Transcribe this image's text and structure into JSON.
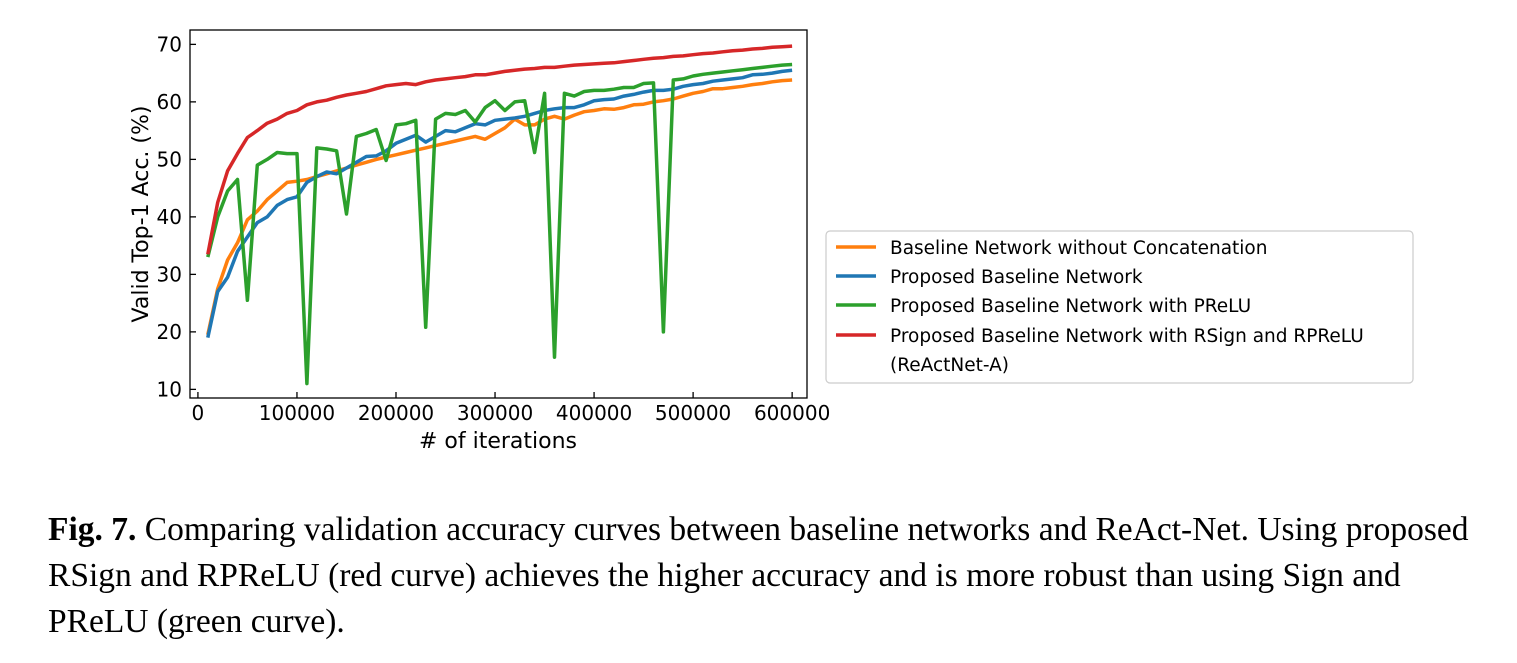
{
  "chart_data": {
    "type": "line",
    "xlabel": "# of iterations",
    "ylabel": "Valid Top-1 Acc. (%)",
    "xlim": [
      -8000,
      615000
    ],
    "ylim": [
      8.5,
      72.5
    ],
    "xticks": [
      0,
      100000,
      200000,
      300000,
      400000,
      500000,
      600000
    ],
    "yticks": [
      10,
      20,
      30,
      40,
      50,
      60,
      70
    ],
    "grid": false,
    "legend_position": "right, outside plot",
    "x": [
      10000,
      20000,
      30000,
      40000,
      50000,
      60000,
      70000,
      80000,
      90000,
      100000,
      110000,
      120000,
      130000,
      140000,
      150000,
      160000,
      170000,
      180000,
      190000,
      200000,
      210000,
      220000,
      230000,
      240000,
      250000,
      260000,
      270000,
      280000,
      290000,
      300000,
      310000,
      320000,
      330000,
      340000,
      350000,
      360000,
      370000,
      380000,
      390000,
      400000,
      410000,
      420000,
      430000,
      440000,
      450000,
      460000,
      470000,
      480000,
      490000,
      500000,
      510000,
      520000,
      530000,
      540000,
      550000,
      560000,
      570000,
      580000,
      590000,
      600000
    ],
    "series": [
      {
        "name": "Baseline Network without Concatenation",
        "color": "#ff7f0e",
        "values": [
          19.5,
          27.5,
          32.5,
          35.5,
          39.5,
          41.0,
          43.0,
          44.5,
          46.0,
          46.2,
          46.5,
          47.0,
          47.5,
          48.0,
          48.5,
          49.0,
          49.5,
          50.0,
          50.4,
          50.8,
          51.2,
          51.6,
          52.0,
          52.4,
          52.8,
          53.2,
          53.6,
          54.0,
          53.5,
          54.5,
          55.5,
          57.0,
          56.0,
          56.0,
          57.0,
          57.5,
          57.0,
          57.7,
          58.3,
          58.5,
          58.8,
          58.7,
          59.0,
          59.5,
          59.6,
          60.0,
          60.2,
          60.5,
          61.0,
          61.5,
          61.8,
          62.3,
          62.3,
          62.5,
          62.7,
          63.0,
          63.2,
          63.5,
          63.7,
          63.8
        ]
      },
      {
        "name": "Proposed Baseline Network",
        "color": "#1f77b4",
        "values": [
          19.0,
          27.0,
          29.5,
          34.0,
          36.5,
          39.0,
          40.0,
          42.0,
          43.0,
          43.5,
          46.0,
          47.0,
          47.8,
          47.5,
          48.5,
          49.5,
          50.5,
          50.6,
          51.5,
          52.8,
          53.5,
          54.2,
          53.0,
          54.0,
          55.0,
          54.8,
          55.5,
          56.2,
          56.0,
          56.8,
          57.0,
          57.2,
          57.5,
          58.0,
          58.5,
          58.8,
          59.0,
          59.0,
          59.5,
          60.2,
          60.4,
          60.5,
          61.0,
          61.3,
          61.7,
          62.0,
          62.0,
          62.2,
          62.7,
          63.0,
          63.2,
          63.6,
          63.8,
          64.0,
          64.2,
          64.7,
          64.8,
          65.0,
          65.3,
          65.5
        ]
      },
      {
        "name": "Proposed Baseline Network with PReLU",
        "color": "#2ca02c",
        "values": [
          33.0,
          40.0,
          44.5,
          46.5,
          25.5,
          49.0,
          50.0,
          51.2,
          51.0,
          51.0,
          11.0,
          52.0,
          51.8,
          51.5,
          40.5,
          54.0,
          54.5,
          55.2,
          49.8,
          56.0,
          56.2,
          56.8,
          20.8,
          57.0,
          58.0,
          57.8,
          58.5,
          56.5,
          59.0,
          60.2,
          58.5,
          60.0,
          60.2,
          51.2,
          61.5,
          15.6,
          61.5,
          61.0,
          61.8,
          62.0,
          62.0,
          62.2,
          62.5,
          62.5,
          63.2,
          63.3,
          20.0,
          63.8,
          64.0,
          64.5,
          64.8,
          65.0,
          65.2,
          65.4,
          65.6,
          65.8,
          66.0,
          66.2,
          66.4,
          66.5
        ]
      },
      {
        "name": "Proposed Baseline Network with RSign and RPReLU\n(ReActNet-A)",
        "color": "#d62728",
        "values": [
          33.5,
          42.5,
          48.0,
          51.0,
          53.8,
          55.0,
          56.3,
          57.0,
          58.0,
          58.5,
          59.5,
          60.0,
          60.3,
          60.8,
          61.2,
          61.5,
          61.8,
          62.3,
          62.8,
          63.0,
          63.2,
          63.0,
          63.5,
          63.8,
          64.0,
          64.2,
          64.4,
          64.7,
          64.7,
          65.0,
          65.3,
          65.5,
          65.7,
          65.8,
          66.0,
          66.0,
          66.2,
          66.4,
          66.5,
          66.6,
          66.7,
          66.8,
          67.0,
          67.2,
          67.4,
          67.6,
          67.7,
          67.9,
          68.0,
          68.2,
          68.4,
          68.5,
          68.7,
          68.9,
          69.0,
          69.2,
          69.3,
          69.5,
          69.6,
          69.7
        ]
      }
    ],
    "legend_lines": [
      "Baseline Network without Concatenation",
      "Proposed Baseline Network",
      "Proposed Baseline Network with PReLU",
      "Proposed Baseline Network with RSign and RPReLU",
      "(ReActNet-A)"
    ]
  },
  "caption": {
    "label": "Fig. 7.",
    "text": "Comparing validation accuracy curves between baseline networks and ReAct-Net. Using proposed RSign and RPReLU (red curve) achieves the higher accuracy and is more robust than using Sign and PReLU (green curve)."
  }
}
